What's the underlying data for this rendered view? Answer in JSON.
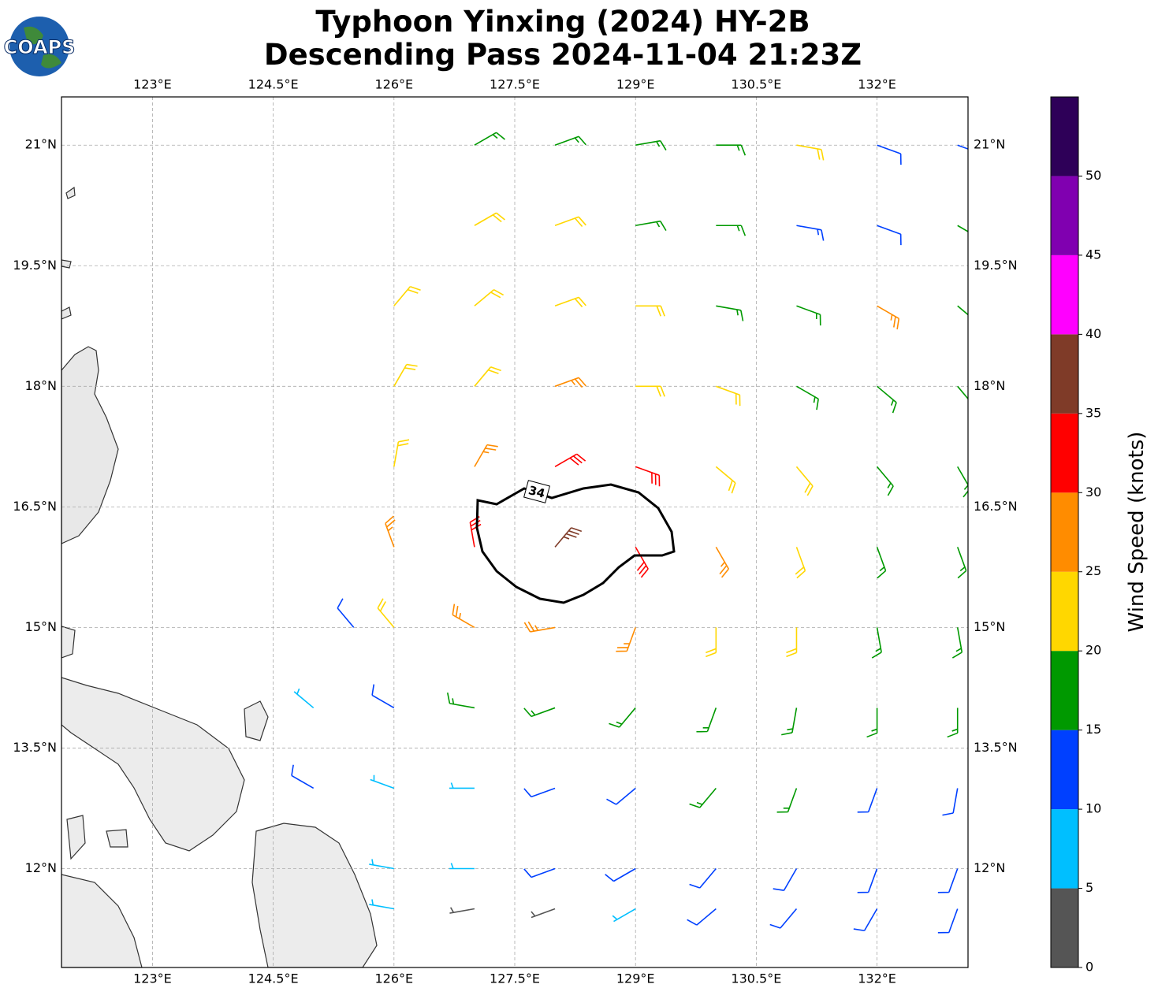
{
  "logo": "COAPS",
  "title": [
    "Typhoon Yinxing (2024) HY-2B",
    "Descending Pass 2024-11-04 21:23Z"
  ],
  "map": {
    "xlim": [
      121.87,
      133.13
    ],
    "ylim": [
      10.77,
      21.6
    ],
    "xticks": [
      {
        "value": 123,
        "label": "123°E"
      },
      {
        "value": 124.5,
        "label": "124.5°E"
      },
      {
        "value": 126,
        "label": "126°E"
      },
      {
        "value": 127.5,
        "label": "127.5°E"
      },
      {
        "value": 129,
        "label": "129°E"
      },
      {
        "value": 130.5,
        "label": "130.5°E"
      },
      {
        "value": 132,
        "label": "132°E"
      }
    ],
    "yticks": [
      {
        "value": 12,
        "label": "12°N"
      },
      {
        "value": 13.5,
        "label": "13.5°N"
      },
      {
        "value": 15,
        "label": "15°N"
      },
      {
        "value": 16.5,
        "label": "16.5°N"
      },
      {
        "value": 18,
        "label": "18°N"
      },
      {
        "value": 19.5,
        "label": "19.5°N"
      },
      {
        "value": 21,
        "label": "21°N"
      }
    ],
    "grid": true,
    "contour_label": "34",
    "barbs": [
      {
        "lat": 21,
        "lons": [
          127,
          128,
          129,
          130,
          131,
          132,
          133
        ],
        "speeds": [
          17,
          17,
          17,
          17,
          22,
          12,
          12
        ],
        "directions": [
          60,
          70,
          80,
          90,
          100,
          110,
          110
        ]
      },
      {
        "lat": 20,
        "lons": [
          127,
          128,
          129,
          130,
          131,
          132,
          133
        ],
        "speeds": [
          22,
          22,
          18,
          17,
          13,
          12,
          17
        ],
        "directions": [
          60,
          70,
          80,
          90,
          100,
          110,
          120
        ]
      },
      {
        "lat": 19,
        "lons": [
          126,
          127,
          128,
          129,
          130,
          131,
          132,
          133
        ],
        "speeds": [
          22,
          22,
          22,
          22,
          18,
          18,
          27,
          18
        ],
        "directions": [
          40,
          50,
          70,
          90,
          100,
          110,
          120,
          130
        ]
      },
      {
        "lat": 18,
        "lons": [
          126,
          127,
          128,
          129,
          130,
          131,
          132,
          133
        ],
        "speeds": [
          22,
          22,
          27,
          22,
          22,
          18,
          18,
          18
        ],
        "directions": [
          30,
          40,
          70,
          90,
          110,
          120,
          130,
          140
        ]
      },
      {
        "lat": 17,
        "lons": [
          126,
          127,
          128,
          129,
          130,
          131,
          132,
          133
        ],
        "speeds": [
          22,
          27,
          32,
          32,
          22,
          22,
          18,
          18
        ],
        "directions": [
          10,
          30,
          60,
          110,
          130,
          140,
          140,
          150
        ]
      },
      {
        "lat": 16,
        "lons": [
          126,
          127,
          128,
          129,
          130,
          131,
          132,
          133
        ],
        "speeds": [
          27,
          32,
          37,
          32,
          27,
          22,
          18,
          18
        ],
        "directions": [
          340,
          350,
          40,
          150,
          150,
          160,
          160,
          160
        ]
      },
      {
        "lat": 15,
        "lons": [
          125.5,
          126,
          127,
          128,
          129,
          130,
          131,
          132,
          133
        ],
        "speeds": [
          12,
          22,
          27,
          27,
          27,
          22,
          22,
          18,
          18
        ],
        "directions": [
          320,
          320,
          300,
          260,
          200,
          180,
          180,
          170,
          170
        ]
      },
      {
        "lat": 14,
        "lons": [
          125,
          126,
          127,
          128,
          129,
          130,
          131,
          132,
          133
        ],
        "speeds": [
          8,
          12,
          18,
          18,
          18,
          18,
          18,
          18,
          18
        ],
        "directions": [
          310,
          300,
          280,
          250,
          220,
          200,
          190,
          180,
          180
        ]
      },
      {
        "lat": 13,
        "lons": [
          125,
          126,
          127,
          128,
          129,
          130,
          131,
          132,
          133
        ],
        "speeds": [
          12,
          8,
          8,
          12,
          12,
          18,
          18,
          12,
          12
        ],
        "directions": [
          300,
          290,
          270,
          250,
          230,
          220,
          200,
          200,
          190
        ]
      },
      {
        "lat": 12,
        "lons": [
          126,
          127,
          128,
          129,
          130,
          131,
          132,
          133
        ],
        "speeds": [
          8,
          8,
          12,
          12,
          12,
          12,
          12,
          12
        ],
        "directions": [
          280,
          270,
          250,
          240,
          220,
          210,
          200,
          200
        ]
      },
      {
        "lat": 11.5,
        "lons": [
          126,
          127,
          128,
          129,
          130,
          131,
          132,
          133
        ],
        "speeds": [
          8,
          3,
          3,
          8,
          12,
          12,
          12,
          12
        ],
        "directions": [
          280,
          260,
          250,
          240,
          230,
          220,
          210,
          200
        ]
      }
    ]
  },
  "colorbar": {
    "label": "Wind Speed (knots)",
    "lim": [
      0,
      55
    ],
    "ticks": [
      0,
      5,
      10,
      15,
      20,
      25,
      30,
      35,
      40,
      45,
      50
    ],
    "bounds": [
      0,
      5,
      10,
      15,
      20,
      25,
      30,
      35,
      40,
      45,
      50,
      55
    ],
    "colors": [
      "#555555",
      "#00bfff",
      "#0040ff",
      "#009900",
      "#ffd700",
      "#ff8c00",
      "#ff0000",
      "#7f3b28",
      "#ff00ff",
      "#8000b0",
      "#2e0058"
    ]
  }
}
